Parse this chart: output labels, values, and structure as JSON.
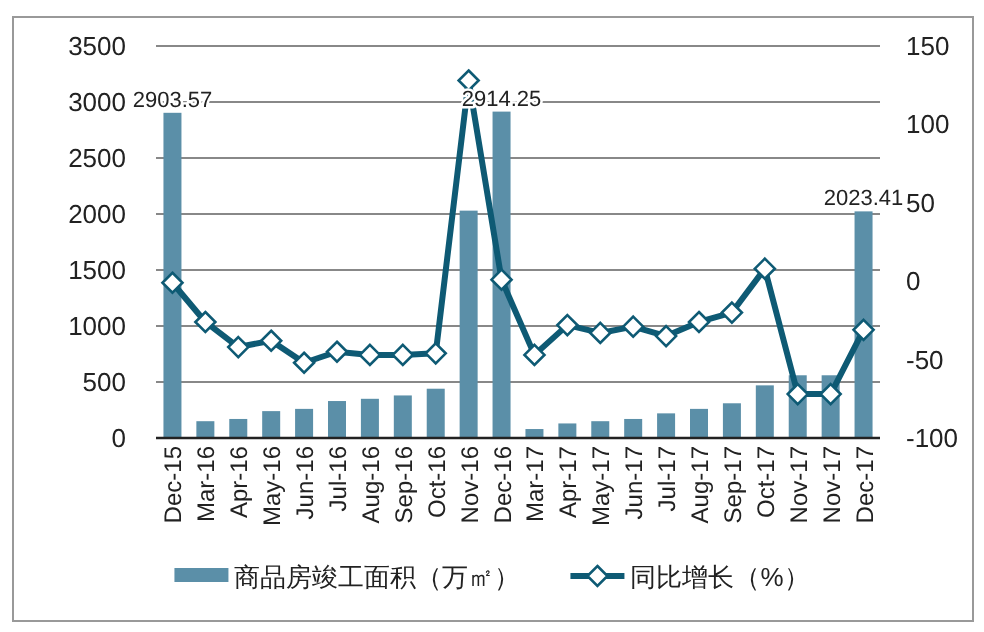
{
  "chart_data": {
    "type": "bar",
    "categories": [
      "Dec-15",
      "Mar-16",
      "Apr-16",
      "May-16",
      "Jun-16",
      "Jul-16",
      "Aug-16",
      "Sep-16",
      "Oct-16",
      "Nov-16",
      "Dec-16",
      "Mar-17",
      "Apr-17",
      "May-17",
      "Jun-17",
      "Jul-17",
      "Aug-17",
      "Sep-17",
      "Oct-17",
      "Nov-17",
      "Nov-17",
      "Dec-17"
    ],
    "series": [
      {
        "name": "商品房竣工面积（万㎡）",
        "color": "#5b8fa8",
        "values": [
          2903.57,
          150,
          170,
          240,
          260,
          330,
          350,
          380,
          440,
          2030,
          2914.25,
          80,
          130,
          150,
          170,
          220,
          260,
          310,
          470,
          560,
          560,
          2023.41
        ],
        "value_labels": [
          "2903.57",
          null,
          null,
          null,
          null,
          null,
          null,
          null,
          null,
          null,
          "2914.25",
          null,
          null,
          null,
          null,
          null,
          null,
          null,
          null,
          null,
          null,
          "2023.41"
        ]
      },
      {
        "name": "同比增长（%）",
        "type": "line",
        "axis": "y2",
        "color": "#0e5a74",
        "marker": "diamond",
        "values": [
          -1,
          -26,
          -42,
          -38,
          -52,
          -45,
          -47,
          -47,
          -46,
          128,
          1,
          -47,
          -28,
          -33,
          -29,
          -35,
          -26,
          -20,
          8,
          -72,
          -72,
          -31
        ]
      }
    ],
    "ylim": [
      0,
      3500
    ],
    "yticks": [
      0,
      500,
      1000,
      1500,
      2000,
      2500,
      3000,
      3500
    ],
    "y2lim": [
      -100,
      150
    ],
    "y2ticks": [
      -100,
      -50,
      0,
      50,
      100,
      150
    ],
    "grid": "y",
    "legend": "bottom"
  }
}
